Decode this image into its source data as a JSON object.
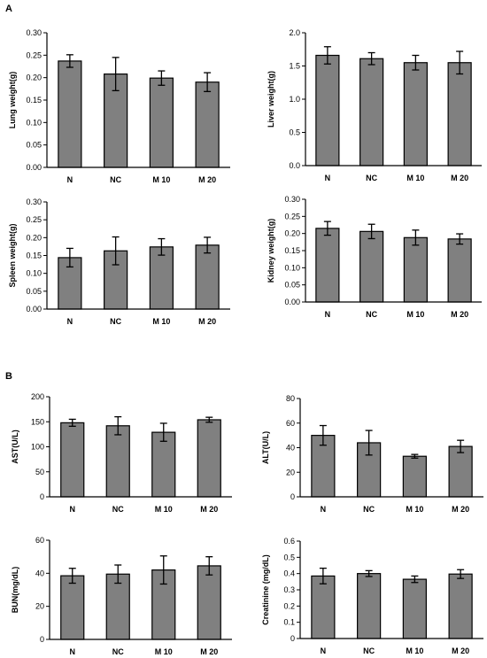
{
  "panels": {
    "a": "A",
    "b": "B"
  },
  "chart_data": [
    {
      "id": "lung",
      "type": "bar",
      "categories": [
        "N",
        "NC",
        "M 10",
        "M 20"
      ],
      "values": [
        0.237,
        0.208,
        0.199,
        0.19
      ],
      "errors": [
        0.014,
        0.037,
        0.016,
        0.021
      ],
      "ylabel": "Lung weight(g)",
      "ylim": [
        0,
        0.3
      ],
      "yticks": [
        "0.00",
        "0.05",
        "0.10",
        "0.15",
        "0.20",
        "0.25",
        "0.30"
      ],
      "grid": false
    },
    {
      "id": "liver",
      "type": "bar",
      "categories": [
        "N",
        "NC",
        "M 10",
        "M 20"
      ],
      "values": [
        1.66,
        1.61,
        1.55,
        1.55
      ],
      "errors": [
        0.13,
        0.09,
        0.11,
        0.17
      ],
      "ylabel": "Liver weight(g)",
      "ylim": [
        0,
        2.0
      ],
      "yticks": [
        "0.0",
        "0.5",
        "1.0",
        "1.5",
        "2.0"
      ],
      "grid": false
    },
    {
      "id": "spleen",
      "type": "bar",
      "categories": [
        "N",
        "NC",
        "M 10",
        "M 20"
      ],
      "values": [
        0.144,
        0.163,
        0.174,
        0.179
      ],
      "errors": [
        0.026,
        0.039,
        0.023,
        0.022
      ],
      "ylabel": "Spleen weight(g)",
      "ylim": [
        0,
        0.3
      ],
      "yticks": [
        "0.00",
        "0.05",
        "0.10",
        "0.15",
        "0.20",
        "0.25",
        "0.30"
      ],
      "grid": false
    },
    {
      "id": "kidney",
      "type": "bar",
      "categories": [
        "N",
        "NC",
        "M 10",
        "M 20"
      ],
      "values": [
        0.215,
        0.206,
        0.188,
        0.184
      ],
      "errors": [
        0.02,
        0.021,
        0.022,
        0.015
      ],
      "ylabel": "Kidney  weight(g)",
      "ylim": [
        0,
        0.3
      ],
      "yticks": [
        "0.00",
        "0.05",
        "0.10",
        "0.15",
        "0.20",
        "0.25",
        "0.30"
      ],
      "grid": false
    },
    {
      "id": "ast",
      "type": "bar",
      "categories": [
        "N",
        "NC",
        "M 10",
        "M 20"
      ],
      "values": [
        148,
        142,
        129,
        154
      ],
      "errors": [
        7,
        18,
        18,
        5
      ],
      "ylabel": "AST(U/L)",
      "ylim": [
        0,
        200
      ],
      "yticks": [
        "0",
        "50",
        "100",
        "150",
        "200"
      ],
      "grid": false
    },
    {
      "id": "alt",
      "type": "bar",
      "categories": [
        "N",
        "NC",
        "M 10",
        "M 20"
      ],
      "values": [
        50,
        44,
        33,
        41
      ],
      "errors": [
        8,
        10,
        1.5,
        5
      ],
      "ylabel": "ALT(U/L)",
      "ylim": [
        0,
        80
      ],
      "yticks": [
        "0",
        "20",
        "40",
        "60",
        "80"
      ],
      "grid": false
    },
    {
      "id": "bun",
      "type": "bar",
      "categories": [
        "N",
        "NC",
        "M 10",
        "M 20"
      ],
      "values": [
        38.5,
        39.5,
        42,
        44.5
      ],
      "errors": [
        4.5,
        5.5,
        8.5,
        5.5
      ],
      "ylabel": "BUN(mg/dL)",
      "ylim": [
        0,
        60
      ],
      "yticks": [
        "0",
        "20",
        "40",
        "60"
      ],
      "grid": false
    },
    {
      "id": "creatinine",
      "type": "bar",
      "categories": [
        "N",
        "NC",
        "M 10",
        "M 20"
      ],
      "values": [
        0.385,
        0.4,
        0.365,
        0.397
      ],
      "errors": [
        0.048,
        0.018,
        0.02,
        0.027
      ],
      "ylabel": "Creatinine (mg/dL)",
      "ylim": [
        0,
        0.6
      ],
      "yticks": [
        "0",
        "0.1",
        "0.2",
        "0.3",
        "0.4",
        "0.5",
        "0.6"
      ],
      "grid": false
    }
  ],
  "colors": {
    "bar": "#808080",
    "axis": "#000000"
  }
}
